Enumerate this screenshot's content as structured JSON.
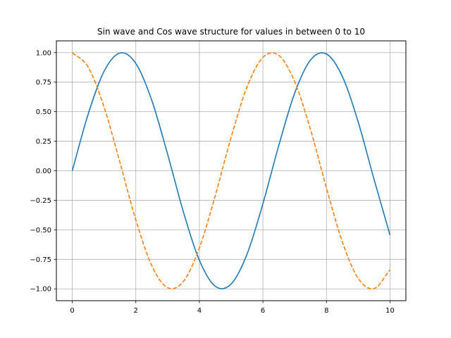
{
  "chart_data": {
    "type": "line",
    "title": "Sin wave and Cos wave structure for values in between 0 to 10",
    "xlabel": "",
    "ylabel": "",
    "xlim": [
      -0.5,
      10.5
    ],
    "ylim": [
      -1.1,
      1.1
    ],
    "grid": true,
    "legend": "none",
    "x_ticks": [
      0,
      2,
      4,
      6,
      8,
      10
    ],
    "x_tick_labels": [
      "0",
      "2",
      "4",
      "6",
      "8",
      "10"
    ],
    "y_ticks": [
      1.0,
      0.75,
      0.5,
      0.25,
      0.0,
      -0.25,
      -0.5,
      -0.75,
      -1.0
    ],
    "y_tick_labels": [
      "1.00",
      "0.75",
      "0.50",
      "0.25",
      "0.00",
      "−0.25",
      "−0.50",
      "−0.75",
      "−1.00"
    ],
    "x": [
      0,
      0.5,
      1.0,
      1.5,
      2.0,
      2.5,
      3.0,
      3.5,
      4.0,
      4.5,
      5.0,
      5.5,
      6.0,
      6.5,
      7.0,
      7.5,
      8.0,
      8.5,
      9.0,
      9.5,
      10.0
    ],
    "series": [
      {
        "color": "#1f77b4",
        "linestyle": "solid",
        "values": [
          0.0,
          0.479,
          0.841,
          0.997,
          0.909,
          0.598,
          0.141,
          -0.351,
          -0.757,
          -0.978,
          -0.959,
          -0.706,
          -0.279,
          0.215,
          0.657,
          0.938,
          0.989,
          0.798,
          0.412,
          -0.075,
          -0.544
        ]
      },
      {
        "color": "#ff7f0e",
        "linestyle": "dashed",
        "values": [
          1.0,
          0.878,
          0.54,
          0.071,
          -0.416,
          -0.801,
          -0.99,
          -0.936,
          -0.654,
          -0.211,
          0.284,
          0.709,
          0.96,
          0.977,
          0.754,
          0.347,
          -0.146,
          -0.602,
          -0.911,
          -0.997,
          -0.839
        ]
      }
    ]
  }
}
